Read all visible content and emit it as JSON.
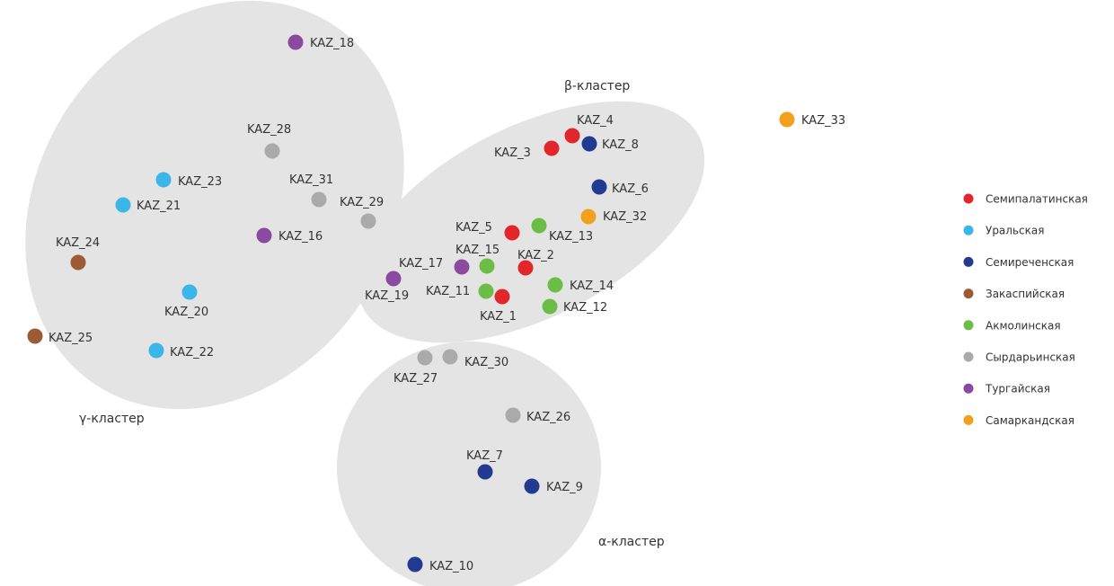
{
  "chart_data": {
    "type": "scatter",
    "clusters": [
      {
        "key": "gamma",
        "label": "γ-кластер"
      },
      {
        "key": "beta",
        "label": "β-кластер"
      },
      {
        "key": "alpha",
        "label": "α-кластер"
      }
    ],
    "series": [
      {
        "name": "Семипалатинская",
        "color": "#e3262b"
      },
      {
        "name": "Уральская",
        "color": "#3bb6e8"
      },
      {
        "name": "Семиреченская",
        "color": "#223a8f"
      },
      {
        "name": "Закаспийская",
        "color": "#9c5a35"
      },
      {
        "name": "Акмолинская",
        "color": "#6cbd45"
      },
      {
        "name": "Сырдарьинская",
        "color": "#aaaaaa"
      },
      {
        "name": "Тургайская",
        "color": "#8a4aa0"
      },
      {
        "name": "Самаркандская",
        "color": "#f2a11e"
      }
    ],
    "points": [
      {
        "label": "KAZ_1",
        "series": 0
      },
      {
        "label": "KAZ_2",
        "series": 0
      },
      {
        "label": "KAZ_3",
        "series": 0
      },
      {
        "label": "KAZ_4",
        "series": 0
      },
      {
        "label": "KAZ_5",
        "series": 0
      },
      {
        "label": "KAZ_6",
        "series": 2
      },
      {
        "label": "KAZ_7",
        "series": 2
      },
      {
        "label": "KAZ_8",
        "series": 2
      },
      {
        "label": "KAZ_9",
        "series": 2
      },
      {
        "label": "KAZ_10",
        "series": 2
      },
      {
        "label": "KAZ_11",
        "series": 4
      },
      {
        "label": "KAZ_12",
        "series": 4
      },
      {
        "label": "KAZ_13",
        "series": 4
      },
      {
        "label": "KAZ_14",
        "series": 4
      },
      {
        "label": "KAZ_15",
        "series": 4
      },
      {
        "label": "KAZ_16",
        "series": 6
      },
      {
        "label": "KAZ_17",
        "series": 6
      },
      {
        "label": "KAZ_18",
        "series": 6
      },
      {
        "label": "KAZ_19",
        "series": 6
      },
      {
        "label": "KAZ_20",
        "series": 1
      },
      {
        "label": "KAZ_21",
        "series": 1
      },
      {
        "label": "KAZ_22",
        "series": 1
      },
      {
        "label": "KAZ_23",
        "series": 1
      },
      {
        "label": "KAZ_24",
        "series": 3
      },
      {
        "label": "KAZ_25",
        "series": 3
      },
      {
        "label": "KAZ_26",
        "series": 5
      },
      {
        "label": "KAZ_27",
        "series": 5
      },
      {
        "label": "KAZ_28",
        "series": 5
      },
      {
        "label": "KAZ_29",
        "series": 5
      },
      {
        "label": "KAZ_30",
        "series": 5
      },
      {
        "label": "KAZ_31",
        "series": 5
      },
      {
        "label": "KAZ_32",
        "series": 7
      },
      {
        "label": "KAZ_33",
        "series": 7
      }
    ],
    "cluster_fill": "#e4e4e4"
  }
}
